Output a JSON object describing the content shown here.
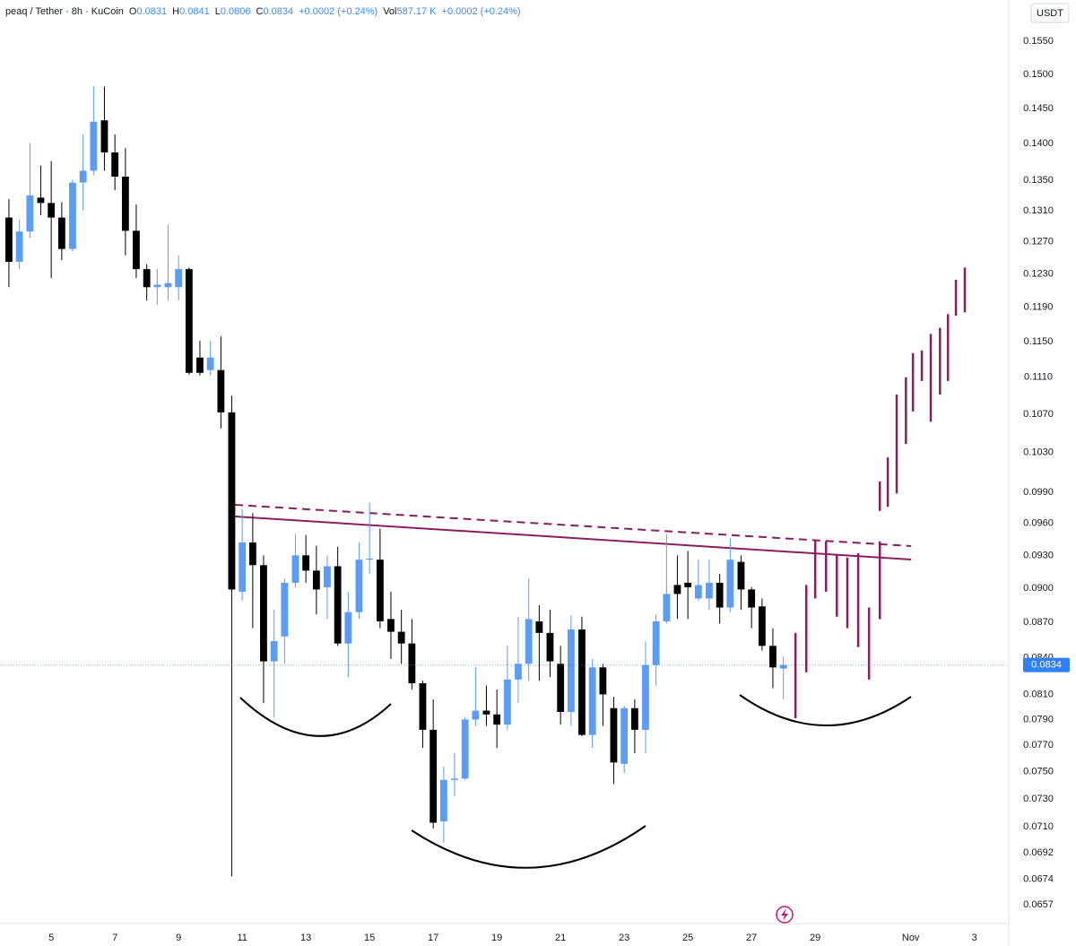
{
  "header": {
    "symbol": "peaq / Tether · 8h · KuCoin",
    "open_label": "O",
    "high_label": "H",
    "low_label": "L",
    "close_label": "C",
    "change": "+0.0002 (+0.24%)",
    "vol_label": "Vol",
    "vol_value": "587.17 K",
    "vol_change": "+0.0002 (+0.24%)",
    "currency": "USDT"
  },
  "chart_data": {
    "type": "candlestick",
    "x": [
      3.67,
      4,
      4.33,
      4.67,
      5,
      5.33,
      5.67,
      6,
      6.33,
      6.67,
      7,
      7.33,
      7.67,
      8,
      8.33,
      8.67,
      9,
      9.33,
      9.67,
      10,
      10.33,
      10.67,
      11,
      11.33,
      11.67,
      12,
      12.33,
      12.67,
      13,
      13.33,
      13.67,
      14,
      14.33,
      14.67,
      15,
      15.33,
      15.67,
      16,
      16.33,
      16.67,
      17,
      17.33,
      17.67,
      18,
      18.33,
      18.67,
      19,
      19.33,
      19.67,
      20,
      20.33,
      20.67,
      21,
      21.33,
      21.67,
      22,
      22.33,
      22.67,
      23,
      23.33,
      23.67,
      24,
      24.33,
      24.67,
      25,
      25.33,
      25.67,
      26,
      26.33,
      26.67,
      27,
      27.33,
      27.67,
      28
    ],
    "open": [
      0.1301,
      0.1245,
      0.1283,
      0.1327,
      0.132,
      0.1301,
      0.1261,
      0.1347,
      0.1363,
      0.1433,
      0.1388,
      0.1355,
      0.1284,
      0.1236,
      0.1214,
      0.1214,
      0.1214,
      0.1236,
      0.1132,
      0.1118,
      0.1118,
      0.1072,
      0.0897,
      0.0942,
      0.0921,
      0.0837,
      0.0858,
      0.0905,
      0.093,
      0.0916,
      0.0901,
      0.092,
      0.0852,
      0.0879,
      0.0926,
      0.0926,
      0.0873,
      0.0862,
      0.0852,
      0.0819,
      0.0782,
      0.0714,
      0.0744,
      0.0745,
      0.079,
      0.0797,
      0.0794,
      0.0786,
      0.0822,
      0.0835,
      0.0871,
      0.0861,
      0.0835,
      0.0796,
      0.0864,
      0.0778,
      0.0832,
      0.0799,
      0.0756,
      0.0799,
      0.0782,
      0.0834,
      0.0871,
      0.0903,
      0.0905,
      0.0891,
      0.0891,
      0.0905,
      0.0883,
      0.0924,
      0.0899,
      0.0884,
      0.085,
      0.0831
    ],
    "high": [
      0.1325,
      0.1298,
      0.1401,
      0.137,
      0.1376,
      0.1321,
      0.1351,
      0.1413,
      0.1482,
      0.1482,
      0.1413,
      0.1394,
      0.1318,
      0.1242,
      0.1236,
      0.1292,
      0.1253,
      0.1238,
      0.1151,
      0.1151,
      0.1156,
      0.109,
      0.0974,
      0.097,
      0.093,
      0.0881,
      0.0909,
      0.095,
      0.0949,
      0.0939,
      0.093,
      0.0938,
      0.0897,
      0.0942,
      0.098,
      0.0955,
      0.0897,
      0.0881,
      0.0873,
      0.0821,
      0.0806,
      0.0754,
      0.0764,
      0.0792,
      0.0832,
      0.0817,
      0.0814,
      0.085,
      0.0875,
      0.0909,
      0.0885,
      0.0881,
      0.085,
      0.0876,
      0.0875,
      0.0839,
      0.0835,
      0.0808,
      0.0801,
      0.0806,
      0.0854,
      0.0877,
      0.095,
      0.093,
      0.0934,
      0.0926,
      0.0926,
      0.0913,
      0.0946,
      0.093,
      0.0901,
      0.0891,
      0.0865,
      0.0841
    ],
    "low": [
      0.1214,
      0.1236,
      0.1275,
      0.1304,
      0.1225,
      0.1247,
      0.1258,
      0.131,
      0.1357,
      0.1363,
      0.1337,
      0.1253,
      0.1225,
      0.1198,
      0.1193,
      0.1198,
      0.1198,
      0.1113,
      0.1112,
      0.1112,
      0.1055,
      0.0676,
      0.0889,
      0.0865,
      0.0803,
      0.0792,
      0.0835,
      0.0901,
      0.0905,
      0.0877,
      0.0873,
      0.085,
      0.0824,
      0.0873,
      0.0913,
      0.0865,
      0.0839,
      0.0835,
      0.0814,
      0.0768,
      0.0709,
      0.0699,
      0.0732,
      0.0744,
      0.0785,
      0.0785,
      0.0768,
      0.0782,
      0.0803,
      0.0821,
      0.0821,
      0.0824,
      0.0786,
      0.0785,
      0.0777,
      0.0768,
      0.0785,
      0.0741,
      0.0749,
      0.0764,
      0.0764,
      0.0817,
      0.0869,
      0.0873,
      0.0873,
      0.0889,
      0.0881,
      0.0869,
      0.0879,
      0.0881,
      0.0865,
      0.0846,
      0.0815,
      0.0806
    ],
    "close": [
      0.1245,
      0.1283,
      0.133,
      0.132,
      0.1301,
      0.1261,
      0.1347,
      0.1363,
      0.1431,
      0.1388,
      0.1355,
      0.1284,
      0.1236,
      0.1214,
      0.1217,
      0.1219,
      0.1236,
      0.1115,
      0.1115,
      0.1132,
      0.1072,
      0.0899,
      0.0942,
      0.0921,
      0.0837,
      0.0854,
      0.0905,
      0.093,
      0.0916,
      0.0899,
      0.092,
      0.0852,
      0.0879,
      0.0926,
      0.0927,
      0.0871,
      0.0862,
      0.0852,
      0.0819,
      0.0782,
      0.0713,
      0.0744,
      0.0745,
      0.079,
      0.0797,
      0.0794,
      0.0786,
      0.0822,
      0.0835,
      0.0873,
      0.0861,
      0.0837,
      0.0796,
      0.0864,
      0.0778,
      0.0832,
      0.081,
      0.0757,
      0.0799,
      0.0782,
      0.0834,
      0.0871,
      0.0895,
      0.0895,
      0.0901,
      0.0903,
      0.0905,
      0.0883,
      0.0926,
      0.0899,
      0.0883,
      0.085,
      0.0832,
      0.0834
    ],
    "up_color": "#5b9cf6",
    "down_color": "#000000",
    "projection": {
      "color": "#8b1f5e",
      "x": [
        28.38,
        28.72,
        29.0,
        29.34,
        29.68,
        30.01,
        30.35,
        30.69,
        31.03,
        31.03,
        31.28,
        31.56,
        31.85,
        32.07,
        32.35,
        32.63,
        32.92,
        33.17,
        33.42,
        33.7
      ],
      "high": [
        0.0861,
        0.0903,
        0.0944,
        0.0943,
        0.093,
        0.0928,
        0.0932,
        0.0883,
        0.0943,
        0.1001,
        0.1025,
        0.1091,
        0.111,
        0.1137,
        0.114,
        0.1159,
        0.1166,
        0.1182,
        0.1223,
        0.1238
      ],
      "low": [
        0.0791,
        0.0828,
        0.0891,
        0.0897,
        0.0875,
        0.0865,
        0.0849,
        0.0822,
        0.0873,
        0.0972,
        0.0976,
        0.0989,
        0.1039,
        0.1073,
        0.1106,
        0.1062,
        0.1091,
        0.1106,
        0.118,
        0.1184
      ]
    },
    "xlim": [
      3.39,
      35.08
    ],
    "xticks": [
      5,
      7,
      9,
      11,
      13,
      15,
      17,
      19,
      21,
      23,
      25,
      27,
      29,
      {
        "value": 32,
        "label": "Nov"
      },
      {
        "value": 34,
        "label": "3"
      }
    ],
    "ylim": [
      0.0645,
      0.1615
    ],
    "log_scale": true,
    "grid": false,
    "yticks": [
      {
        "value": 0.155,
        "label": "0.1550"
      },
      {
        "value": 0.15,
        "label": "0.1500"
      },
      {
        "value": 0.145,
        "label": "0.1450"
      },
      {
        "value": 0.14,
        "label": "0.1400"
      },
      {
        "value": 0.135,
        "label": "0.1350"
      },
      {
        "value": 0.131,
        "label": "0.1310"
      },
      {
        "value": 0.127,
        "label": "0.1270"
      },
      {
        "value": 0.123,
        "label": "0.1230"
      },
      {
        "value": 0.119,
        "label": "0.1190"
      },
      {
        "value": 0.115,
        "label": "0.1150"
      },
      {
        "value": 0.111,
        "label": "0.1110"
      },
      {
        "value": 0.107,
        "label": "0.1070"
      },
      {
        "value": 0.103,
        "label": "0.1030"
      },
      {
        "value": 0.099,
        "label": "0.0990"
      },
      {
        "value": 0.096,
        "label": "0.0960"
      },
      {
        "value": 0.093,
        "label": "0.0930"
      },
      {
        "value": 0.09,
        "label": "0.0900"
      },
      {
        "value": 0.087,
        "label": "0.0870"
      },
      {
        "value": 0.084,
        "label": "0.0840"
      },
      {
        "value": 0.081,
        "label": "0.0810"
      },
      {
        "value": 0.079,
        "label": "0.0790"
      },
      {
        "value": 0.077,
        "label": "0.0770"
      },
      {
        "value": 0.075,
        "label": "0.0750"
      },
      {
        "value": 0.073,
        "label": "0.0730"
      },
      {
        "value": 0.071,
        "label": "0.0710"
      },
      {
        "value": 0.0692,
        "label": "0.0692"
      },
      {
        "value": 0.0674,
        "label": "0.0674"
      },
      {
        "value": 0.0657,
        "label": "0.0657"
      }
    ],
    "last_price_color": "#2f7ff5"
  }
}
